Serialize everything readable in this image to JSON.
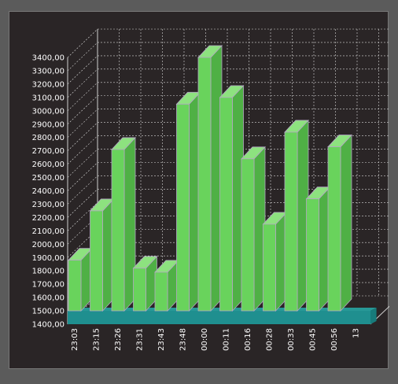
{
  "chart_data": {
    "type": "bar",
    "style": "3d",
    "title": "",
    "xlabel": "",
    "ylabel": "",
    "categories": [
      "23:03",
      "23:15",
      "23:26",
      "23:31",
      "23:43",
      "23:48",
      "00:00",
      "00:11",
      "00:16",
      "00:28",
      "00:33",
      "00:45",
      "00:56",
      "13"
    ],
    "values": [
      1880,
      2250,
      2710,
      1820,
      1790,
      3050,
      3400,
      3100,
      2640,
      2150,
      2840,
      2340,
      2730,
      1400
    ],
    "ylim": [
      1400,
      3400
    ],
    "yticks": [
      1400,
      1500,
      1600,
      1700,
      1800,
      1900,
      2000,
      2100,
      2200,
      2300,
      2400,
      2500,
      2600,
      2700,
      2800,
      2900,
      3000,
      3100,
      3200,
      3300,
      3400
    ],
    "ytick_labels": [
      "1400,00",
      "1500,00",
      "1600,00",
      "1700,00",
      "1800,00",
      "1900,00",
      "2000,00",
      "2100,00",
      "2200,00",
      "2300,00",
      "2400,00",
      "2500,00",
      "2600,00",
      "2700,00",
      "2800,00",
      "2900,00",
      "3000,00",
      "3100,00",
      "3200,00",
      "3300,00",
      "3400,00"
    ],
    "grid": true,
    "legend": "none",
    "colors": {
      "bar_front": "#69d35c",
      "bar_side": "#4fb045",
      "bar_top": "#8de27f",
      "bar_edge": "#b4a7c4",
      "floor": "#27a6a4",
      "floor_front": "#1f8f8f",
      "grid": "#d8d8d8",
      "background": "#2a2526"
    }
  }
}
